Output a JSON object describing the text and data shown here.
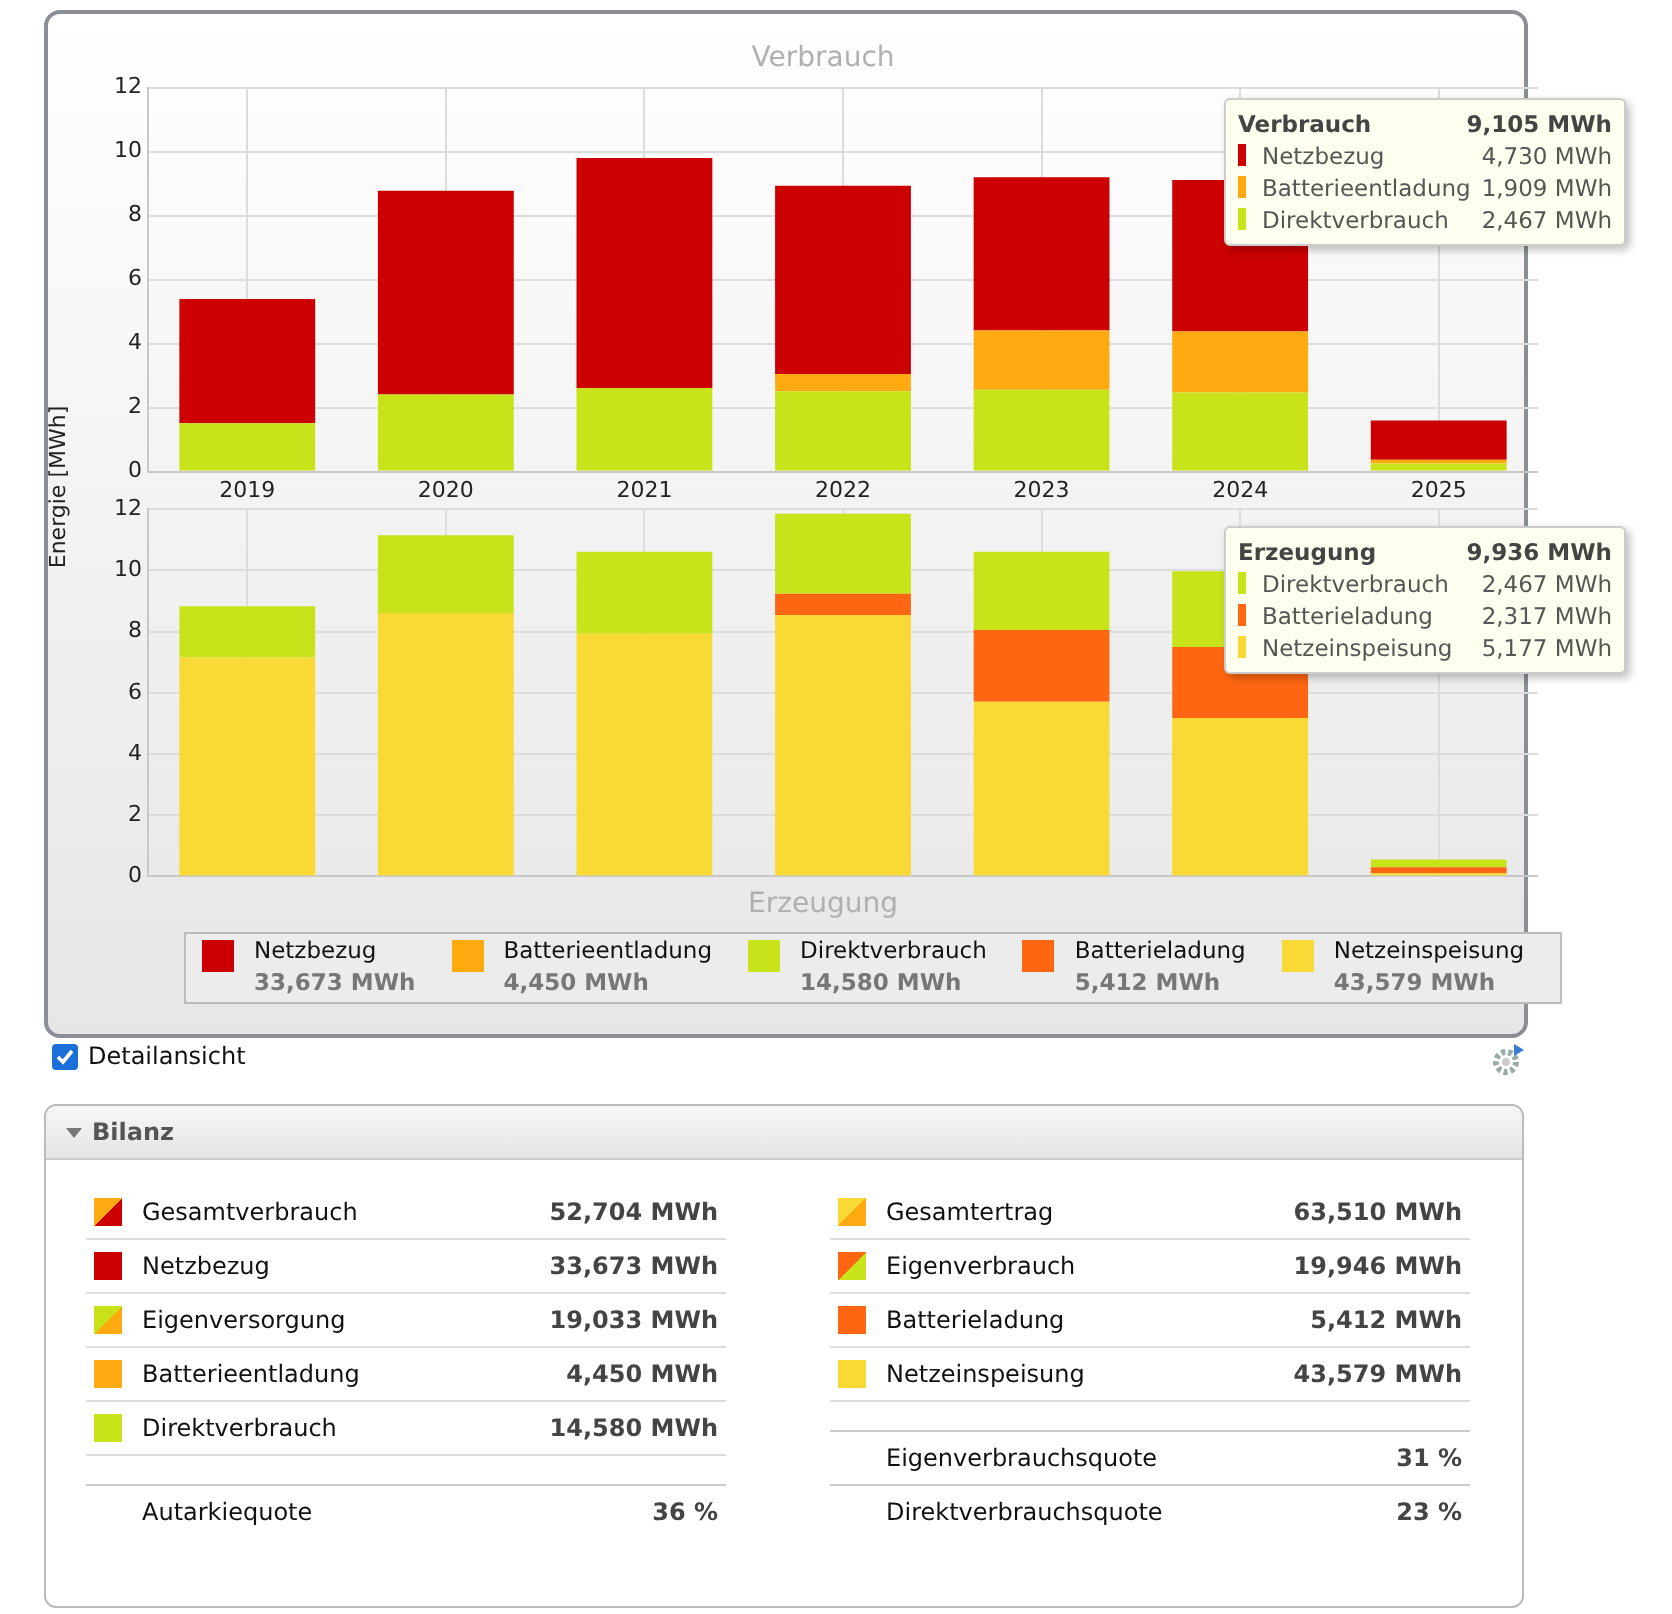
{
  "chart_data": [
    {
      "type": "bar",
      "title": "Verbrauch",
      "ylabel": "Energie [MWh]",
      "categories": [
        "2019",
        "2020",
        "2021",
        "2022",
        "2023",
        "2024",
        "2025"
      ],
      "stacked": true,
      "series": [
        {
          "name": "Direktverbrauch",
          "color": "#c8e31a",
          "values": [
            1.51,
            2.41,
            2.61,
            2.51,
            2.56,
            2.47,
            0.25
          ]
        },
        {
          "name": "Batterieentladung",
          "color": "#ffaa11",
          "values": [
            0,
            0,
            0,
            0.54,
            1.85,
            1.91,
            0.12
          ]
        },
        {
          "name": "Netzbezug",
          "color": "#cc0000",
          "values": [
            3.88,
            6.37,
            7.19,
            5.88,
            4.79,
            4.73,
            1.23
          ]
        }
      ],
      "ylim": [
        0,
        12
      ],
      "yticks": [
        0,
        2,
        4,
        6,
        8,
        10,
        12
      ],
      "grid": true,
      "legend": "top right",
      "annotations": [
        "Verbrauch",
        "9,105 MWh",
        "4,730 MWh",
        "1,909 MWh",
        "2,467 MWh"
      ]
    },
    {
      "type": "bar",
      "title": "Erzeugung",
      "categories": [
        "2019",
        "2020",
        "2021",
        "2022",
        "2023",
        "2024",
        "2025"
      ],
      "stacked": true,
      "tick_labels": "y",
      "series": [
        {
          "name": "Netzeinspeisung",
          "color": "#f9d936",
          "values": [
            7.15,
            8.61,
            7.93,
            8.54,
            5.71,
            5.18,
            0.1
          ]
        },
        {
          "name": "Batterieladung",
          "color": "#ff6611",
          "values": [
            0,
            0,
            0,
            0.7,
            2.34,
            2.32,
            0.2
          ]
        },
        {
          "name": "Direktverbrauch",
          "color": "#c8e31a",
          "values": [
            1.68,
            2.54,
            2.68,
            2.61,
            2.56,
            2.47,
            0.25
          ]
        }
      ],
      "ylim": [
        0,
        12
      ],
      "yticks": [
        0,
        2,
        4,
        6,
        8,
        10,
        12
      ],
      "grid": true,
      "legend": "top right",
      "annotations": [
        "Erzeugung",
        "9,936 MWh",
        "2,467 MWh",
        "2,317 MWh",
        "5,177 MWh",
        "33,673 MWh",
        "4,450 MWh",
        "14,580 MWh",
        "5,412 MWh",
        "43,579 MWh"
      ]
    },
    {
      "type": "other",
      "title": "Bilanz",
      "annotations": [
        "Detailansicht",
        "Gesamtverbrauch",
        "52,704 MWh",
        "Netzbezug",
        "33,673 MWh",
        "Eigenversorgung",
        "19,033 MWh",
        "Batterieentladung",
        "4,450 MWh",
        "Direktverbrauch",
        "14,580 MWh",
        "Autarkiequote",
        "36 %",
        "Gesamtertrag",
        "63,510 MWh",
        "Eigenverbrauch",
        "19,946 MWh",
        "Batterieladung",
        "5,412 MWh",
        "Netzeinspeisung",
        "43,579 MWh",
        "Eigenverbrauchsquote",
        "31 %",
        "Direktverbrauchsquote",
        "23 %"
      ]
    }
  ]
}
